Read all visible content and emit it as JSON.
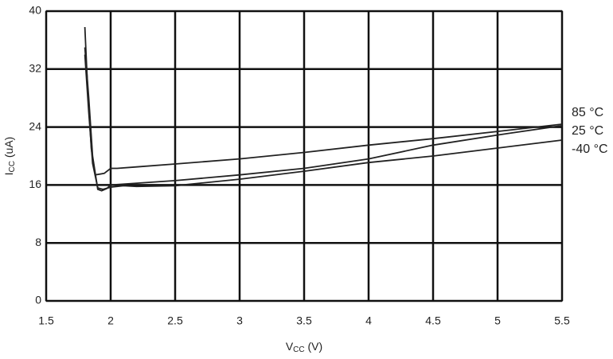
{
  "chart_data": {
    "type": "line",
    "x_label": {
      "base": "V",
      "sub": "CC",
      "rest": " (V)"
    },
    "y_label": {
      "base": "I",
      "sub": "CC",
      "rest": " (uA)"
    },
    "xlim": [
      1.5,
      5.5
    ],
    "xticks": [
      1.5,
      2,
      2.5,
      3,
      3.5,
      4,
      4.5,
      5,
      5.5
    ],
    "ylim": [
      0,
      40
    ],
    "yticks": [
      0,
      8,
      16,
      24,
      32,
      40
    ],
    "grid": true,
    "series": [
      {
        "name": "85 °C",
        "color": "#222222",
        "x": [
          1.8,
          1.82,
          1.85,
          1.88,
          1.95,
          2.0,
          2.05,
          2.2,
          2.5,
          3.0,
          3.5,
          4.0,
          4.5,
          5.0,
          5.5
        ],
        "values": [
          37.8,
          30,
          21,
          17.4,
          17.6,
          18.3,
          18.3,
          18.5,
          18.9,
          19.6,
          20.5,
          21.5,
          22.4,
          23.4,
          24.4
        ]
      },
      {
        "name": "25 °C",
        "color": "#222222",
        "x": [
          1.8,
          1.83,
          1.86,
          1.9,
          1.93,
          1.97,
          2.0,
          2.5,
          3.0,
          3.5,
          4.0,
          4.5,
          5.0,
          5.5
        ],
        "values": [
          35,
          28,
          20,
          15.4,
          15.2,
          15.5,
          16,
          16.6,
          17.4,
          18.3,
          19.6,
          21.5,
          22.9,
          24.2
        ]
      },
      {
        "name": "-40 °C",
        "color": "#222222",
        "x": [
          1.8,
          1.83,
          1.86,
          1.9,
          1.94,
          2.0,
          2.1,
          2.2,
          2.5,
          3.0,
          3.5,
          4.0,
          4.5,
          5.0,
          5.5
        ],
        "values": [
          34,
          26,
          19,
          15.6,
          15.4,
          15.7,
          15.9,
          15.8,
          15.9,
          16.8,
          17.9,
          19.1,
          20.0,
          21.1,
          22.2
        ]
      }
    ]
  }
}
